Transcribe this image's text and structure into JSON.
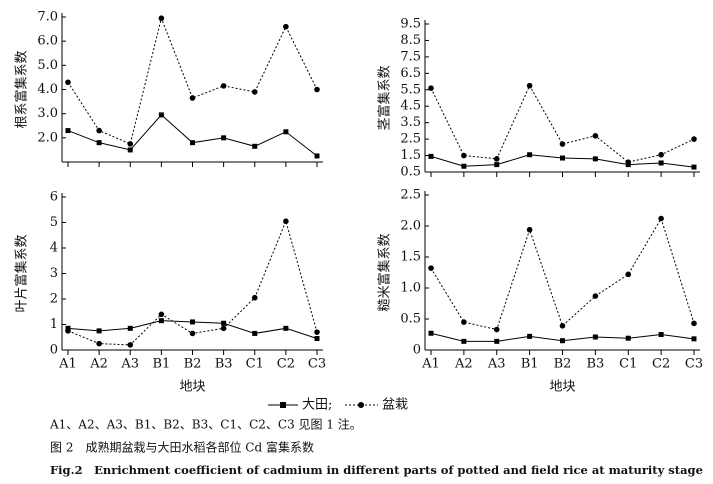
{
  "chart_data": [
    {
      "type": "line",
      "ylabel": "根系富集系数",
      "categories": [
        null,
        null,
        null,
        null,
        null,
        null,
        null,
        null,
        null
      ],
      "ylim": [
        1,
        7
      ],
      "yticks": [
        {
          "value": 2,
          "label": "2.0"
        },
        {
          "value": 3,
          "label": "3.0"
        },
        {
          "value": 4,
          "label": "4.0"
        },
        {
          "value": 5,
          "label": "5.0"
        },
        {
          "value": 6,
          "label": "6.0"
        },
        {
          "value": 7,
          "label": "7.0"
        }
      ],
      "series": [
        {
          "color": "#000000",
          "line_style": "solid",
          "marker": "square",
          "values": [
            2.3,
            1.8,
            1.5,
            2.95,
            1.8,
            2.0,
            1.65,
            2.25,
            1.25
          ]
        },
        {
          "color": "#000000",
          "line_style": "dotted",
          "marker": "circle",
          "values": [
            4.3,
            2.3,
            1.75,
            6.95,
            3.65,
            4.15,
            3.9,
            6.6,
            4.0
          ]
        }
      ]
    },
    {
      "type": "line",
      "ylabel": "茎富集系数",
      "categories": [
        null,
        null,
        null,
        null,
        null,
        null,
        null,
        null,
        null
      ],
      "ylim": [
        0.5,
        9.5
      ],
      "yticks": [
        0.5,
        1.5,
        2.5,
        3.5,
        4.5,
        5.5,
        6.5,
        7.5,
        8.5,
        9.5
      ],
      "series": [
        {
          "color": "#000000",
          "line_style": "solid",
          "marker": "square",
          "values": [
            1.45,
            0.85,
            0.95,
            1.55,
            1.35,
            1.3,
            0.95,
            1.05,
            0.8
          ]
        },
        {
          "color": "#000000",
          "line_style": "dotted",
          "marker": "circle",
          "values": [
            5.6,
            1.5,
            1.3,
            5.75,
            2.2,
            2.7,
            1.1,
            1.55,
            2.5
          ]
        }
      ]
    },
    {
      "type": "line",
      "ylabel": "叶片富集系数",
      "xlabel": "地块",
      "categories": [
        "A1",
        "A2",
        "A3",
        "B1",
        "B2",
        "B3",
        "C1",
        "C2",
        "C3"
      ],
      "ylim": [
        0,
        6
      ],
      "yticks": [
        0,
        1,
        2,
        3,
        4,
        5,
        6
      ],
      "series": [
        {
          "color": "#000000",
          "line_style": "solid",
          "marker": "square",
          "values": [
            0.85,
            0.75,
            0.85,
            1.15,
            1.1,
            1.05,
            0.65,
            0.85,
            0.45
          ]
        },
        {
          "color": "#000000",
          "line_style": "dotted",
          "marker": "circle",
          "values": [
            0.75,
            0.25,
            0.2,
            1.4,
            0.65,
            0.85,
            2.05,
            5.05,
            0.7
          ]
        }
      ]
    },
    {
      "type": "line",
      "ylabel": "糙米富集系数",
      "xlabel": "地块",
      "categories": [
        "A1",
        "A2",
        "A3",
        "B1",
        "B2",
        "B3",
        "C1",
        "C2",
        "C3"
      ],
      "ylim": [
        0,
        2.5
      ],
      "yticks": [
        0,
        0.5,
        {
          "value": 1,
          "label": "1.0"
        },
        1.5,
        {
          "value": 2,
          "label": "2.0"
        },
        2.5
      ],
      "series": [
        {
          "color": "#000000",
          "line_style": "solid",
          "marker": "square",
          "values": [
            0.27,
            0.14,
            0.14,
            0.22,
            0.15,
            0.21,
            0.19,
            0.25,
            0.18
          ]
        },
        {
          "color": "#000000",
          "line_style": "dotted",
          "marker": "circle",
          "values": [
            1.32,
            0.45,
            0.33,
            1.94,
            0.39,
            0.87,
            1.22,
            2.12,
            0.43
          ]
        }
      ]
    }
  ],
  "legend": {
    "items": [
      {
        "label": "大田;"
      },
      {
        "label": "盆栽"
      }
    ]
  },
  "captions": {
    "note": "A1、A2、A3、B1、B2、B3、C1、C2、C3 见图 1 注。",
    "cn_title": "图 2　成熟期盆栽与大田水稻各部位 Cd 富集系数",
    "en_title": "Fig.2　Enrichment coefficient of cadmium in different parts of potted and field rice at maturity stage"
  }
}
